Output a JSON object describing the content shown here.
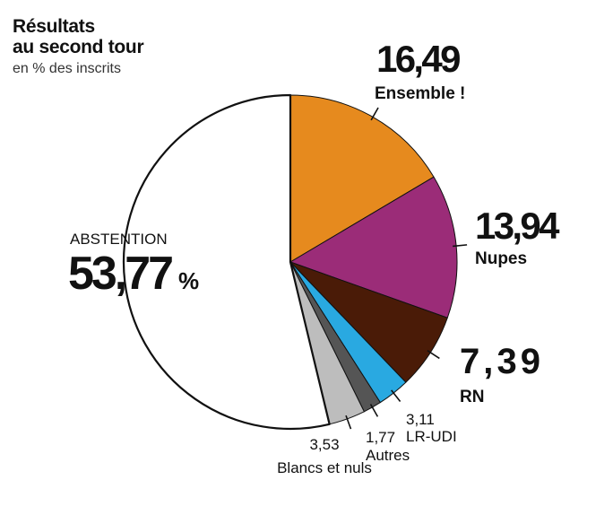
{
  "header": {
    "title_line1": "Résultats",
    "title_line2": "au second tour",
    "subtitle": "en % des inscrits"
  },
  "chart_data": {
    "type": "pie",
    "title": "Résultats au second tour",
    "subtitle": "en % des inscrits",
    "unit": "%",
    "slices": [
      {
        "label": "Ensemble !",
        "display": "16,49",
        "value": 16.49,
        "color": "#E68A1E"
      },
      {
        "label": "Nupes",
        "display": "13,94",
        "value": 13.94,
        "color": "#9B2C78"
      },
      {
        "label": "RN",
        "display": "7,39",
        "value": 7.39,
        "color": "#4A1B07"
      },
      {
        "label": "LR-UDI",
        "display": "3,11",
        "value": 3.11,
        "color": "#29A9E1"
      },
      {
        "label": "Autres",
        "display": "1,77",
        "value": 1.77,
        "color": "#555555"
      },
      {
        "label": "Blancs et nuls",
        "display": "3,53",
        "value": 3.53,
        "color": "#BDBDBD"
      },
      {
        "label": "ABSTENTION",
        "display": "53,77",
        "value": 53.77,
        "color": "#FFFFFF"
      }
    ]
  }
}
